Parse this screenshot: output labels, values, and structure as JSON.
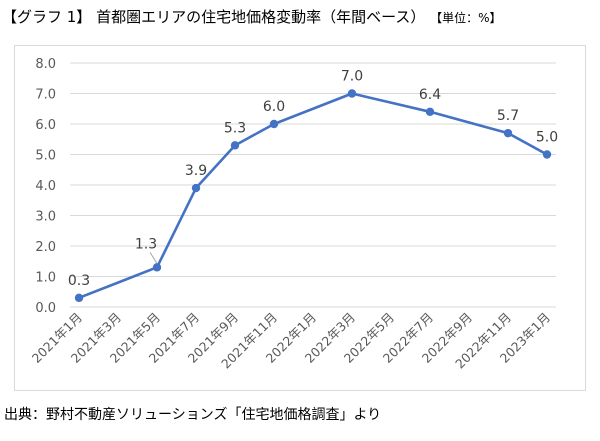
{
  "title": {
    "main": "【グラフ 1】 首都圏エリアの住宅地価格変動率（年間ベース）",
    "unit": "【単位：%】"
  },
  "source": "出典：野村不動産ソリューションズ「住宅地価格調査」より",
  "colors": {
    "line": "#4472C4",
    "grid": "#d9d9d9",
    "tick_text": "#595959",
    "label_text": "#404040"
  },
  "chart_data": {
    "type": "line",
    "title": "首都圏エリアの住宅地価格変動率（年間ベース）",
    "xlabel": "",
    "ylabel": "単位：%",
    "ylim": [
      0,
      8
    ],
    "yticks": [
      "0.0",
      "1.0",
      "2.0",
      "3.0",
      "4.0",
      "5.0",
      "6.0",
      "7.0",
      "8.0"
    ],
    "grid": true,
    "categories": [
      "2021年1月",
      "2021年3月",
      "2021年5月",
      "2021年7月",
      "2021年9月",
      "2021年11月",
      "2022年1月",
      "2022年3月",
      "2022年5月",
      "2022年7月",
      "2022年9月",
      "2022年11月",
      "2023年1月"
    ],
    "points": [
      {
        "x": "2021年1月",
        "y": 0.3,
        "label": "0.3"
      },
      {
        "x": "2021年5月",
        "y": 1.3,
        "label": "1.3"
      },
      {
        "x": "2021年7月",
        "y": 3.9,
        "label": "3.9"
      },
      {
        "x": "2021年9月",
        "y": 5.3,
        "label": "5.3"
      },
      {
        "x": "2021年11月",
        "y": 6.0,
        "label": "6.0"
      },
      {
        "x": "2022年3月",
        "y": 7.0,
        "label": "7.0"
      },
      {
        "x": "2022年7月",
        "y": 6.4,
        "label": "6.4"
      },
      {
        "x": "2022年11月",
        "y": 5.7,
        "label": "5.7"
      },
      {
        "x": "2023年1月",
        "y": 5.0,
        "label": "5.0"
      }
    ]
  }
}
